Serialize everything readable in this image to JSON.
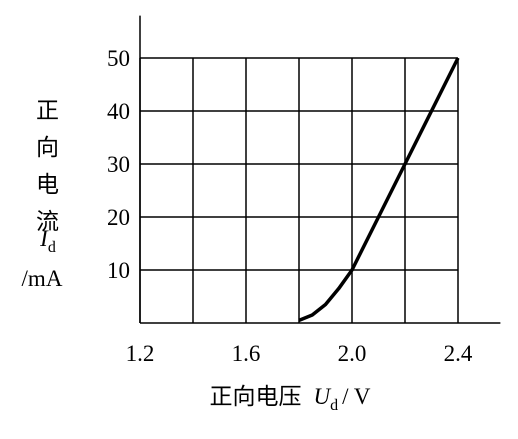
{
  "chart_data": {
    "type": "line",
    "xlabel": "正向电压",
    "xlabel_symbol": "U",
    "xlabel_subscript": "d",
    "xlabel_unit": "/ V",
    "ylabel": "正向电流",
    "ylabel_symbol": "I",
    "ylabel_subscript": "d",
    "ylabel_unit": "/mA",
    "x": [
      1.8,
      1.85,
      1.9,
      1.95,
      2.0,
      2.2,
      2.4
    ],
    "series": [
      {
        "color": "#000000",
        "values": [
          0.5,
          1.5,
          3.5,
          6.5,
          10,
          30,
          50
        ]
      }
    ],
    "xlim": [
      1.2,
      2.56
    ],
    "ylim": [
      0,
      58
    ],
    "xticks": [
      1.2,
      1.6,
      {
        "value": 2,
        "label": "2.0"
      },
      2.4
    ],
    "yticks": [
      10,
      20,
      30,
      40,
      50
    ],
    "xgrid": [
      1.2,
      1.4,
      1.6,
      1.8,
      2,
      2.2,
      2.4
    ],
    "grid": true
  }
}
